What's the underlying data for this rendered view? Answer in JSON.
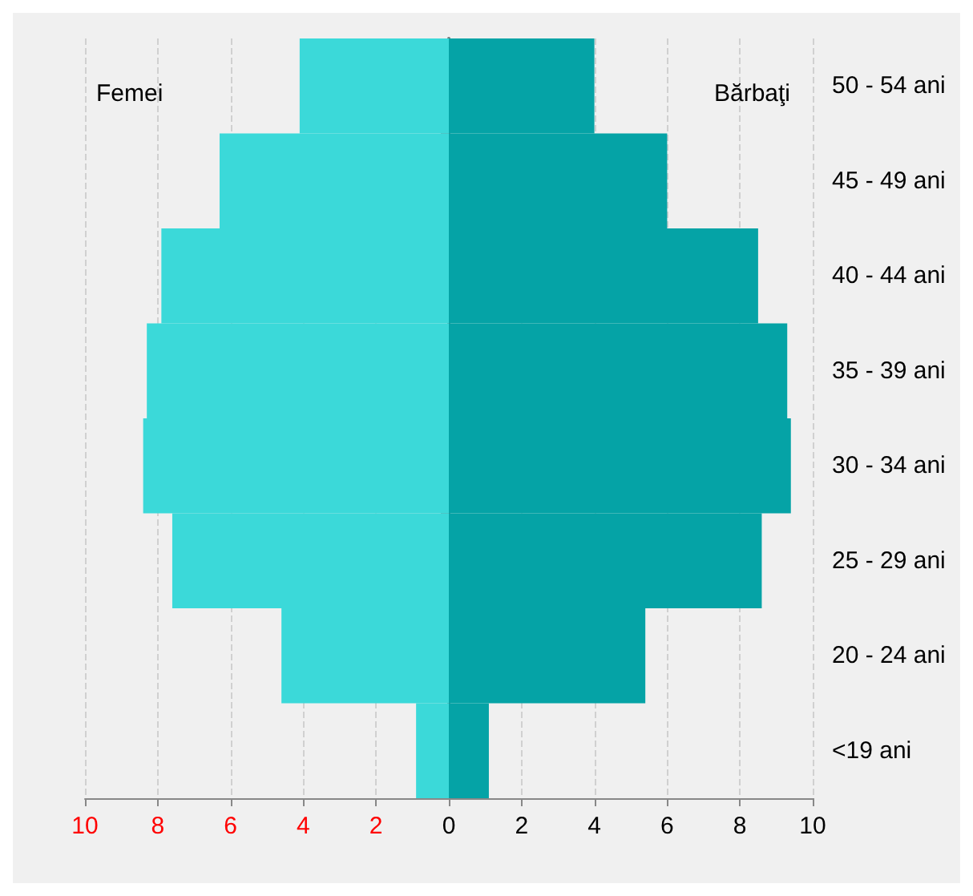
{
  "chart_data": {
    "type": "bar",
    "orientation": "horizontal",
    "categories": [
      "50 - 54 ani",
      "45 - 49 ani",
      "40 - 44 ani",
      "35 - 39 ani",
      "30 - 34 ani",
      "25 - 29 ani",
      "20 - 24 ani",
      "<19 ani"
    ],
    "series": [
      {
        "name": "Femei",
        "color": "#3bd9d9",
        "values": [
          -4.1,
          -6.3,
          -7.9,
          -8.3,
          -8.4,
          -7.6,
          -4.6,
          -0.9
        ]
      },
      {
        "name": "Bărbaţi",
        "color": "#05a3a6",
        "values": [
          4.0,
          6.0,
          8.5,
          9.3,
          9.4,
          8.6,
          5.4,
          1.1
        ]
      }
    ],
    "xlim": [
      -10,
      10
    ],
    "xticks": [
      {
        "value": -10,
        "label": "10"
      },
      {
        "value": -8,
        "label": "8"
      },
      {
        "value": -6,
        "label": "6"
      },
      {
        "value": -4,
        "label": "4"
      },
      {
        "value": -2,
        "label": "2"
      },
      0,
      2,
      4,
      6,
      8,
      10
    ],
    "grid": "x",
    "legend": false,
    "stacked": true
  }
}
